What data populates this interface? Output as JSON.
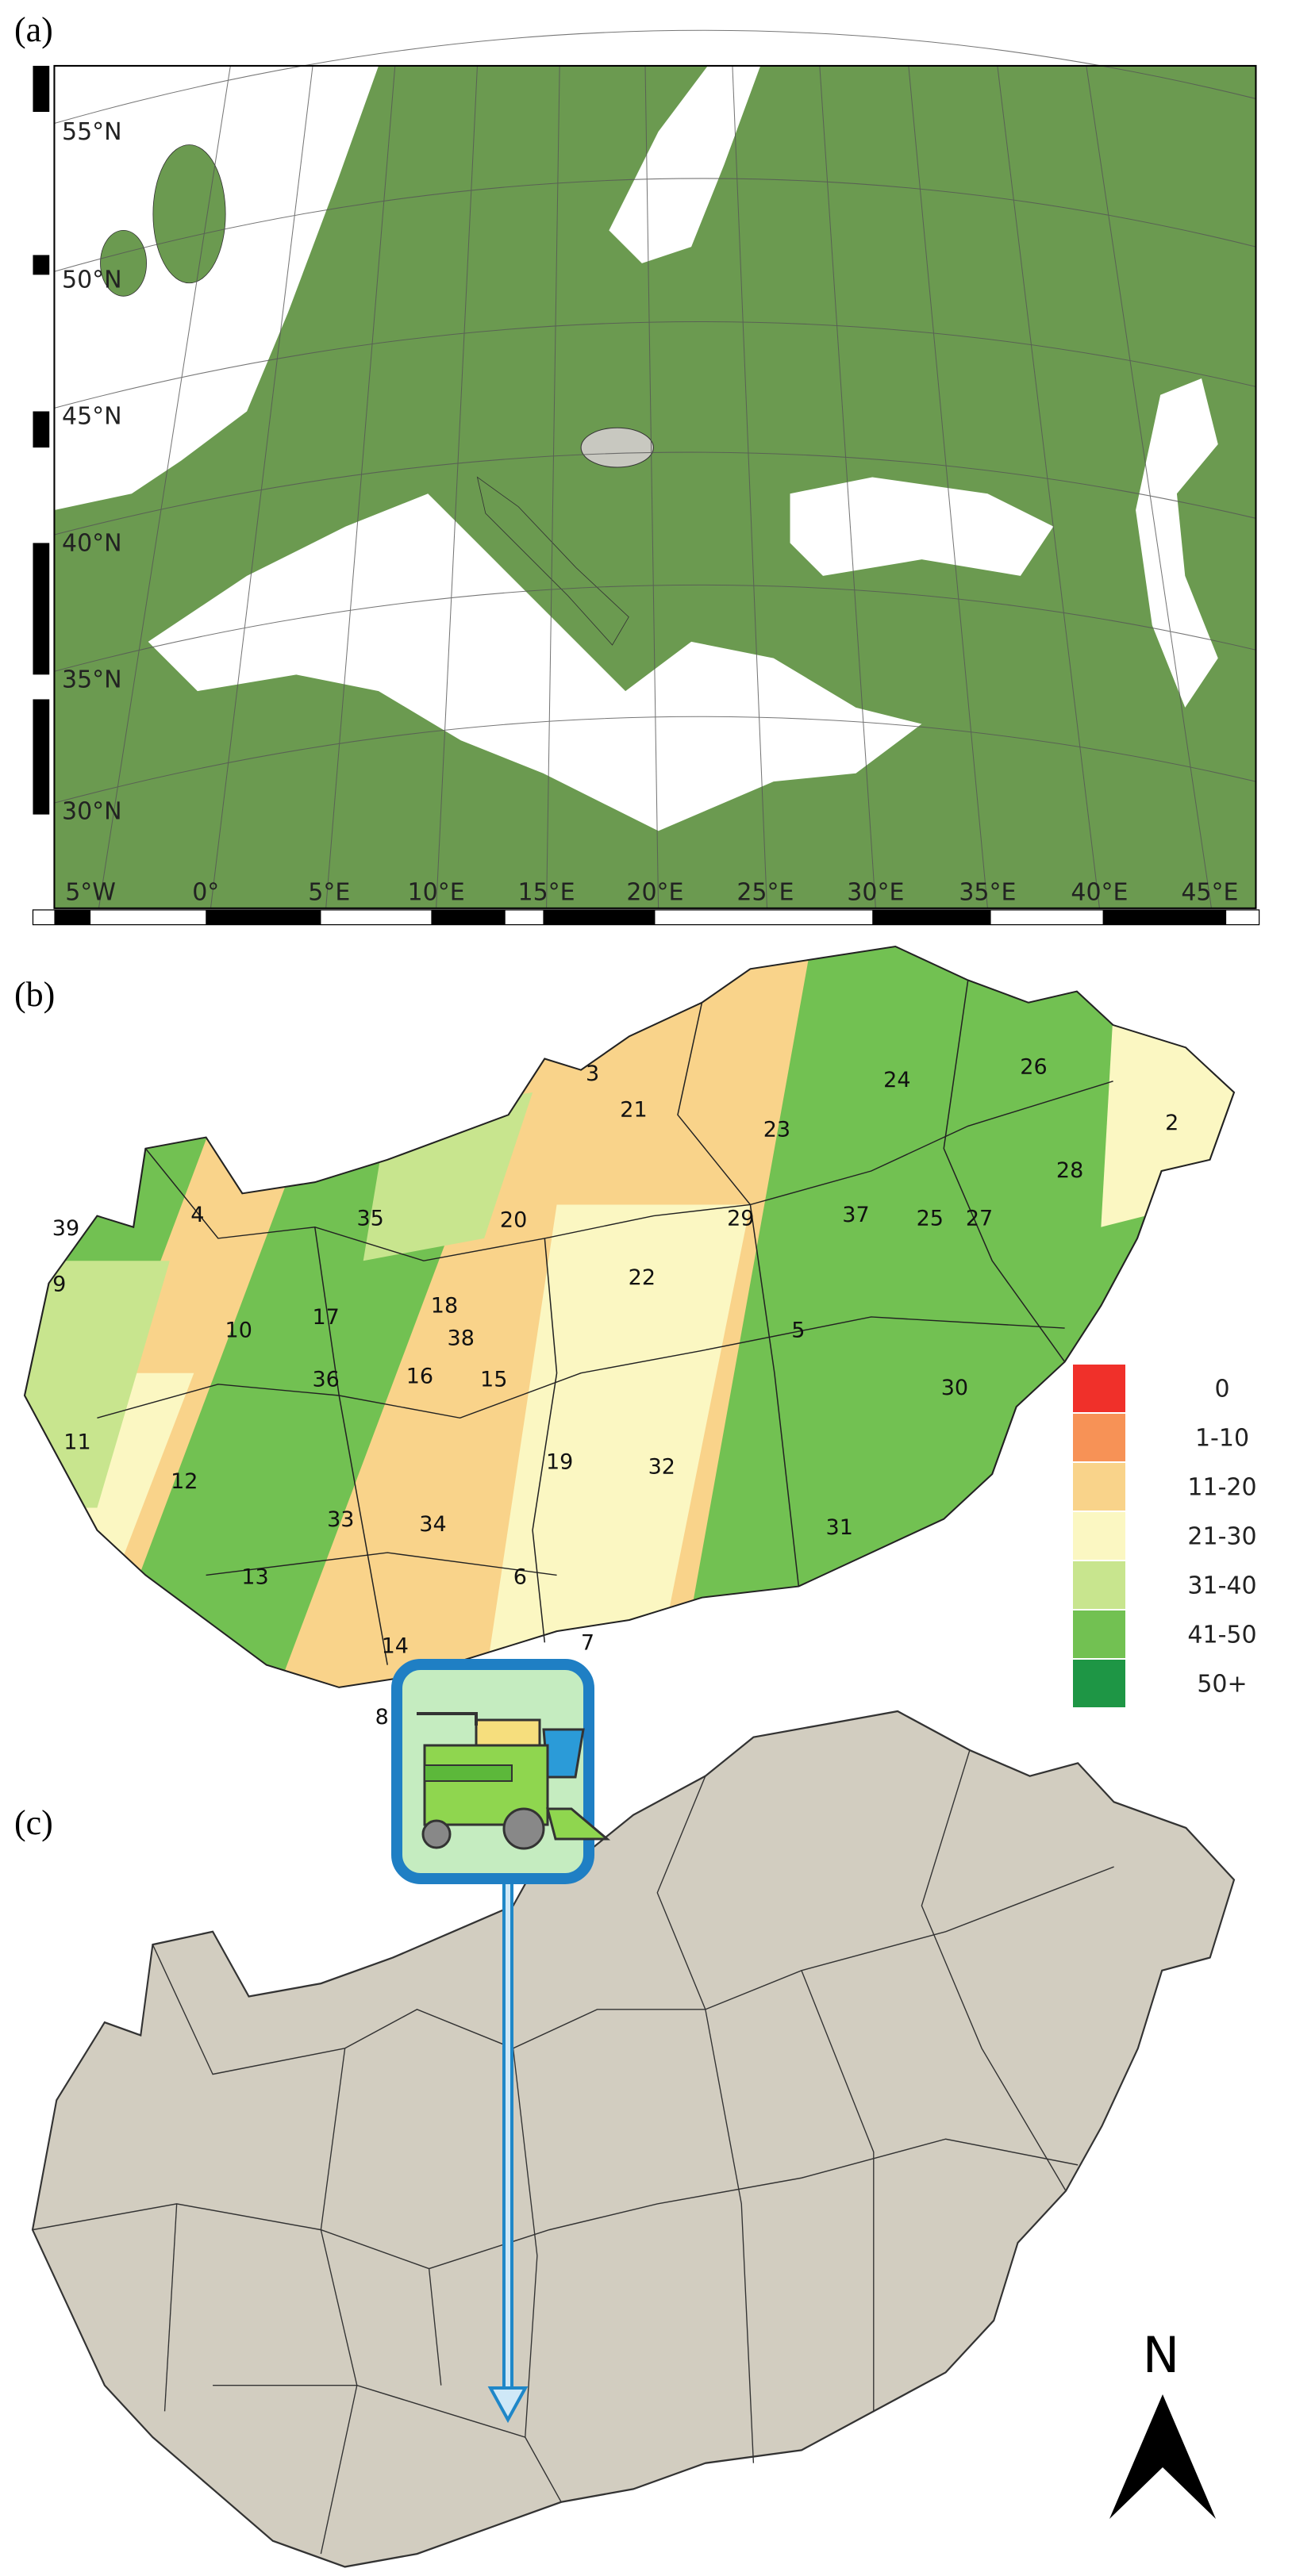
{
  "panels": [
    {
      "label": "(a)",
      "lat_labels": [
        "55°N",
        "50°N",
        "45°N",
        "40°N",
        "35°N",
        "30°N"
      ],
      "lon_labels": [
        "5°W",
        "0°",
        "5°E",
        "10°E",
        "15°E",
        "20°E",
        "25°E",
        "30°E",
        "35°E",
        "40°E",
        "45°E"
      ]
    },
    {
      "label": "(b)",
      "regions": [
        "3",
        "21",
        "24",
        "26",
        "2",
        "23",
        "28",
        "39",
        "4",
        "35",
        "20",
        "29",
        "25",
        "27",
        "37",
        "22",
        "9",
        "18",
        "10",
        "38",
        "17",
        "5",
        "16",
        "15",
        "36",
        "30",
        "11",
        "12",
        "19",
        "32",
        "33",
        "34",
        "31",
        "6",
        "13",
        "7",
        "14",
        "8"
      ],
      "legend": [
        {
          "label": "0",
          "color": "#f0302a"
        },
        {
          "label": "1-10",
          "color": "#f79256"
        },
        {
          "label": "11-20",
          "color": "#f9d38a"
        },
        {
          "label": "21-30",
          "color": "#fbf7c2"
        },
        {
          "label": "31-40",
          "color": "#c8e58e"
        },
        {
          "label": "41-50",
          "color": "#72c152"
        },
        {
          "label": "50+",
          "color": "#1e9645"
        }
      ]
    },
    {
      "label": "(c)",
      "north": "N"
    }
  ]
}
